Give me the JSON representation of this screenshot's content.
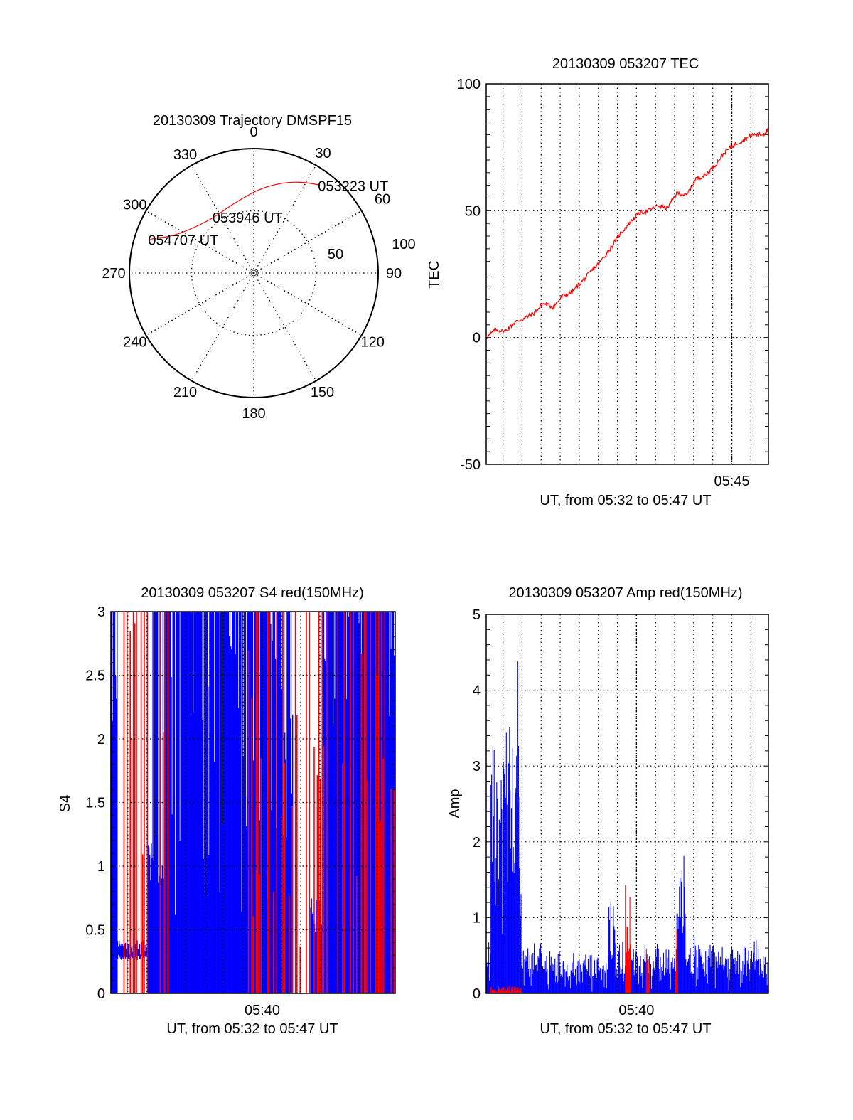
{
  "chart_data": [
    {
      "type": "polar",
      "title": "20130309 Trajectory DMSPF15",
      "angle_labels": [
        "0",
        "30",
        "60",
        "90",
        "120",
        "150",
        "180",
        "210",
        "240",
        "270",
        "300",
        "330"
      ],
      "angles_deg": [
        0,
        30,
        60,
        90,
        120,
        150,
        180,
        210,
        240,
        270,
        300,
        330
      ],
      "radial_labels": [
        "50",
        "100"
      ],
      "radial_values": [
        50,
        100
      ],
      "rmax": 100,
      "series": [
        {
          "name": "trajectory",
          "color": "#ff0000",
          "points": [
            {
              "az": 37,
              "r": 88.5
            },
            {
              "az": 30,
              "r": 84
            },
            {
              "az": 22,
              "r": 79
            },
            {
              "az": 13,
              "r": 73
            },
            {
              "az": 3,
              "r": 67
            },
            {
              "az": 352,
              "r": 61
            },
            {
              "az": 340,
              "r": 57
            },
            {
              "az": 325,
              "r": 55
            },
            {
              "az": 312,
              "r": 58
            },
            {
              "az": 302,
              "r": 64
            },
            {
              "az": 296,
              "r": 70
            },
            {
              "az": 292,
              "r": 77
            },
            {
              "az": 290,
              "r": 83
            },
            {
              "az": 288,
              "r": 87.5
            }
          ]
        }
      ],
      "annotations": [
        {
          "text": "053223 UT",
          "az": 37,
          "r": 88.5
        },
        {
          "text": "053946 UT",
          "az": 325,
          "r": 55
        },
        {
          "text": "054707 UT",
          "az": 288,
          "r": 87.5
        }
      ]
    },
    {
      "type": "line",
      "title": "20130309 053207 TEC",
      "xlabel": "UT, from 05:32 to 05:47 UT",
      "ylabel": "TEC",
      "xlim_minutes": [
        0,
        14.8
      ],
      "ylim": [
        -50,
        100
      ],
      "yticks": [
        -50,
        0,
        50,
        100
      ],
      "ytick_labels": [
        "-50",
        "0",
        "50",
        "100"
      ],
      "xticks_minutes": [
        12.88
      ],
      "xtick_labels": [
        "05:45"
      ],
      "grid": true,
      "series": [
        {
          "name": "TEC",
          "color": "#ff0000",
          "x": [
            0,
            0.5,
            1,
            1.5,
            2,
            2.5,
            3,
            3.5,
            4,
            4.5,
            5,
            5.5,
            6,
            6.5,
            7,
            7.5,
            8,
            8.5,
            9,
            9.5,
            10,
            10.5,
            11,
            11.5,
            12,
            12.5,
            13,
            13.5,
            14,
            14.5,
            14.8
          ],
          "y": [
            0,
            3,
            2.5,
            6,
            7.6,
            9.5,
            13.5,
            12,
            16.3,
            18,
            22,
            26,
            30,
            35,
            40.7,
            45,
            49,
            50,
            52,
            51,
            57,
            56,
            62.6,
            64,
            68,
            73,
            76,
            78,
            80,
            80,
            82
          ]
        }
      ]
    },
    {
      "type": "bar",
      "title": "20130309 053207 S4 red(150MHz)",
      "xlabel": "UT, from 05:32 to 05:47 UT",
      "ylabel": "S4",
      "xlim_minutes": [
        0,
        14.8
      ],
      "ylim": [
        0,
        3
      ],
      "yticks": [
        0,
        0.5,
        1,
        1.5,
        2,
        2.5,
        3
      ],
      "ytick_labels": [
        "0",
        "0.5",
        "1",
        "1.5",
        "2",
        "2.5",
        "3"
      ],
      "xticks_minutes": [
        7.88
      ],
      "xtick_labels": [
        "05:40"
      ],
      "grid": true,
      "series": [
        {
          "name": "blue",
          "color": "#0000ff",
          "segments": [
            {
              "t0": 0,
              "t1": 0.35,
              "base": 1.9,
              "spread": 0.6,
              "spikes": 0.5
            },
            {
              "t0": 0.35,
              "t1": 1.9,
              "base": 0.36,
              "spread": 0.06,
              "spikes": 0
            },
            {
              "t0": 1.9,
              "t1": 2.9,
              "base": 1.1,
              "spread": 0.3,
              "spikes": 0.3
            },
            {
              "t0": 2.9,
              "t1": 8.2,
              "base": 1.8,
              "spread": 1.2,
              "spikes": 0.8
            },
            {
              "t0": 8.2,
              "t1": 9.5,
              "base": 2.2,
              "spread": 1.0,
              "spikes": 0.5
            },
            {
              "t0": 10.4,
              "t1": 11.0,
              "base": 0.6,
              "spread": 0.15,
              "spikes": 0
            },
            {
              "t0": 11.0,
              "t1": 14.8,
              "base": 2.6,
              "spread": 0.6,
              "spikes": 0.8
            }
          ]
        },
        {
          "name": "red",
          "color": "#ff0000",
          "segments": [
            {
              "t0": 0.6,
              "t1": 2.4,
              "base": 2.0,
              "spread": 1.5,
              "spikes": 0.15
            },
            {
              "t0": 2.4,
              "t1": 3.0,
              "base": 2.5,
              "spread": 1.0,
              "spikes": 0.6
            },
            {
              "t0": 7.0,
              "t1": 11.0,
              "base": 1.6,
              "spread": 1.4,
              "spikes": 0.45
            },
            {
              "t0": 11.0,
              "t1": 14.8,
              "base": 1.9,
              "spread": 1.1,
              "spikes": 0.55
            }
          ]
        }
      ]
    },
    {
      "type": "bar",
      "title": "20130309 053207 Amp red(150MHz)",
      "xlabel": "UT, from 05:32 to 05:47 UT",
      "ylabel": "Amp",
      "xlim_minutes": [
        0,
        14.8
      ],
      "ylim": [
        0,
        5
      ],
      "yticks": [
        0,
        1,
        2,
        3,
        4,
        5
      ],
      "ytick_labels": [
        "0",
        "1",
        "2",
        "3",
        "4",
        "5"
      ],
      "xticks_minutes": [
        7.88
      ],
      "xtick_labels": [
        "05:40"
      ],
      "grid": true,
      "series": [
        {
          "name": "blue",
          "color": "#0000ff",
          "segments": [
            {
              "t0": 0,
              "t1": 0.25,
              "base": 0.4,
              "spread": 0.3
            },
            {
              "t0": 0.25,
              "t1": 1.85,
              "base": 2.2,
              "spread": 0.5,
              "peak": 3.05
            },
            {
              "t0": 1.85,
              "t1": 2.9,
              "base": 0.45,
              "spread": 0.25
            },
            {
              "t0": 2.9,
              "t1": 6.4,
              "base": 0.3,
              "spread": 0.25
            },
            {
              "t0": 6.4,
              "t1": 6.75,
              "base": 0.9,
              "spread": 0.4,
              "peak": 1.33
            },
            {
              "t0": 6.75,
              "t1": 10.0,
              "base": 0.35,
              "spread": 0.25
            },
            {
              "t0": 10.0,
              "t1": 10.5,
              "base": 1.3,
              "spread": 0.3,
              "peak": 1.62
            },
            {
              "t0": 10.5,
              "t1": 14.8,
              "base": 0.38,
              "spread": 0.3
            }
          ],
          "spikes": [
            {
              "t": 1.65,
              "v": 4.38
            },
            {
              "t": 0.9,
              "v": 3.05
            },
            {
              "t": 1.2,
              "v": 3.02
            }
          ]
        },
        {
          "name": "red",
          "color": "#ff0000",
          "segments": [
            {
              "t0": 0.25,
              "t1": 1.85,
              "base": 0.06,
              "spread": 0.04
            },
            {
              "t0": 7.3,
              "t1": 7.6,
              "base": 0.9,
              "spread": 0.4,
              "peak": 1.42
            },
            {
              "t0": 8.4,
              "t1": 8.6,
              "base": 0.4,
              "spread": 0.1
            },
            {
              "t0": 9.9,
              "t1": 10.05,
              "base": 0.6,
              "spread": 0.25
            }
          ]
        }
      ]
    }
  ]
}
